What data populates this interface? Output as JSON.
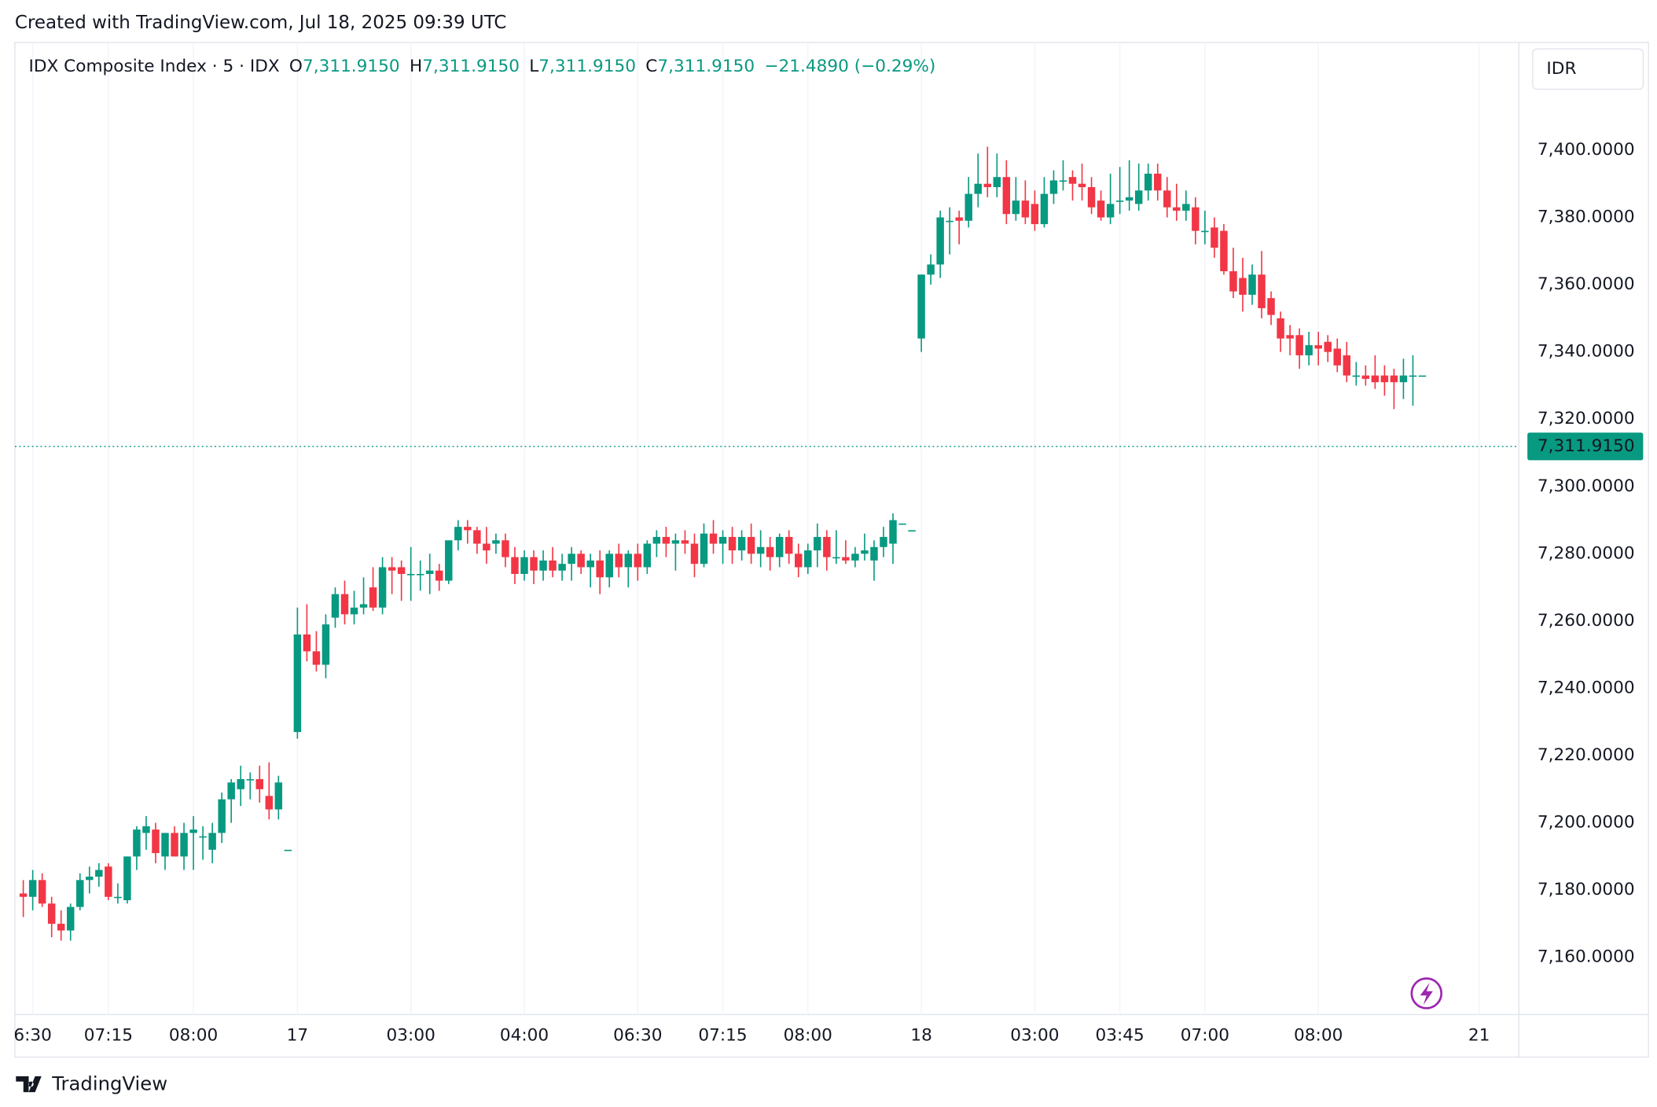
{
  "header": {
    "credit": "Created with TradingView.com, Jul 18, 2025 09:39 UTC",
    "symbol": "IDX Composite Index · 5 · IDX",
    "o_label": "O",
    "open": "7,311.9150",
    "h_label": "H",
    "high": "7,311.9150",
    "l_label": "L",
    "low": "7,311.9150",
    "c_label": "C",
    "close": "7,311.9150",
    "change": "−21.4890 (−0.29%)",
    "currency": "IDR",
    "logo": "TradingView"
  },
  "chart_data": {
    "type": "candlestick",
    "up_color": "#089981",
    "down_color": "#f23645",
    "grid": true,
    "ylim": [
      7143,
      7432
    ],
    "yticks": [
      {
        "value": 7160,
        "label": "7,160.0000"
      },
      {
        "value": 7180,
        "label": "7,180.0000"
      },
      {
        "value": 7200,
        "label": "7,200.0000"
      },
      {
        "value": 7220,
        "label": "7,220.0000"
      },
      {
        "value": 7240,
        "label": "7,240.0000"
      },
      {
        "value": 7260,
        "label": "7,260.0000"
      },
      {
        "value": 7280,
        "label": "7,280.0000"
      },
      {
        "value": 7300,
        "label": "7,300.0000"
      },
      {
        "value": 7320,
        "label": "7,320.0000"
      },
      {
        "value": 7340,
        "label": "7,340.0000"
      },
      {
        "value": 7360,
        "label": "7,360.0000"
      },
      {
        "value": 7380,
        "label": "7,380.0000"
      },
      {
        "value": 7400,
        "label": "7,400.0000"
      }
    ],
    "xticks": [
      {
        "value": 1,
        "label": "6:30"
      },
      {
        "value": 9,
        "label": "07:15"
      },
      {
        "value": 18,
        "label": "08:00"
      },
      {
        "value": 29,
        "label": "17"
      },
      {
        "value": 41,
        "label": "03:00"
      },
      {
        "value": 53,
        "label": "04:00"
      },
      {
        "value": 65,
        "label": "06:30"
      },
      {
        "value": 74,
        "label": "07:15"
      },
      {
        "value": 83,
        "label": "08:00"
      },
      {
        "value": 95,
        "label": "18"
      },
      {
        "value": 107,
        "label": "03:00"
      },
      {
        "value": 116,
        "label": "03:45"
      },
      {
        "value": 125,
        "label": "07:00"
      },
      {
        "value": 137,
        "label": "08:00"
      },
      {
        "value": 154,
        "label": "21"
      }
    ],
    "last_price": {
      "value": 7311.915,
      "label": "7,311.9150"
    },
    "candles": [
      {
        "open": 7179,
        "high": 7183,
        "low": 7172,
        "close": 7178
      },
      {
        "open": 7178,
        "high": 7186,
        "low": 7174,
        "close": 7183
      },
      {
        "open": 7183,
        "high": 7185,
        "low": 7175,
        "close": 7176
      },
      {
        "open": 7176,
        "high": 7178,
        "low": 7166,
        "close": 7170
      },
      {
        "open": 7170,
        "high": 7174,
        "low": 7165,
        "close": 7168
      },
      {
        "open": 7168,
        "high": 7176,
        "low": 7165,
        "close": 7175
      },
      {
        "open": 7175,
        "high": 7185,
        "low": 7174,
        "close": 7183
      },
      {
        "open": 7183,
        "high": 7187,
        "low": 7179,
        "close": 7184
      },
      {
        "open": 7184,
        "high": 7188,
        "low": 7181,
        "close": 7186
      },
      {
        "open": 7187,
        "high": 7188,
        "low": 7177,
        "close": 7178
      },
      {
        "open": 7178,
        "high": 7182,
        "low": 7176,
        "close": 7178
      },
      {
        "open": 7177,
        "high": 7190,
        "low": 7176,
        "close": 7190
      },
      {
        "open": 7190,
        "high": 7199,
        "low": 7186,
        "close": 7198
      },
      {
        "open": 7197,
        "high": 7202,
        "low": 7192,
        "close": 7199
      },
      {
        "open": 7198,
        "high": 7200,
        "low": 7188,
        "close": 7191
      },
      {
        "open": 7190,
        "high": 7197,
        "low": 7186,
        "close": 7197
      },
      {
        "open": 7197,
        "high": 7199,
        "low": 7190,
        "close": 7190
      },
      {
        "open": 7190,
        "high": 7200,
        "low": 7186,
        "close": 7197
      },
      {
        "open": 7197,
        "high": 7202,
        "low": 7186,
        "close": 7198
      },
      {
        "open": 7196,
        "high": 7199,
        "low": 7189,
        "close": 7196
      },
      {
        "open": 7192,
        "high": 7200,
        "low": 7188,
        "close": 7197
      },
      {
        "open": 7197,
        "high": 7209,
        "low": 7194,
        "close": 7207
      },
      {
        "open": 7207,
        "high": 7213,
        "low": 7200,
        "close": 7212
      },
      {
        "open": 7210,
        "high": 7217,
        "low": 7205,
        "close": 7213
      },
      {
        "open": 7213,
        "high": 7215,
        "low": 7207,
        "close": 7213
      },
      {
        "open": 7213,
        "high": 7217,
        "low": 7206,
        "close": 7210
      },
      {
        "open": 7208,
        "high": 7218,
        "low": 7201,
        "close": 7204
      },
      {
        "open": 7204,
        "high": 7214,
        "low": 7201,
        "close": 7212
      },
      {
        "open": 7192,
        "high": 7192,
        "low": 7192,
        "close": 7192
      },
      {
        "open": 7227,
        "high": 7264,
        "low": 7225,
        "close": 7256
      },
      {
        "open": 7256,
        "high": 7265,
        "low": 7248,
        "close": 7251
      },
      {
        "open": 7251,
        "high": 7257,
        "low": 7245,
        "close": 7247
      },
      {
        "open": 7247,
        "high": 7262,
        "low": 7243,
        "close": 7259
      },
      {
        "open": 7261,
        "high": 7270,
        "low": 7258,
        "close": 7268
      },
      {
        "open": 7268,
        "high": 7272,
        "low": 7259,
        "close": 7262
      },
      {
        "open": 7262,
        "high": 7269,
        "low": 7259,
        "close": 7264
      },
      {
        "open": 7264,
        "high": 7273,
        "low": 7262,
        "close": 7265
      },
      {
        "open": 7270,
        "high": 7276,
        "low": 7263,
        "close": 7264
      },
      {
        "open": 7264,
        "high": 7279,
        "low": 7262,
        "close": 7276
      },
      {
        "open": 7276,
        "high": 7279,
        "low": 7268,
        "close": 7275
      },
      {
        "open": 7276,
        "high": 7278,
        "low": 7266,
        "close": 7274
      },
      {
        "open": 7274,
        "high": 7282,
        "low": 7266,
        "close": 7274
      },
      {
        "open": 7274,
        "high": 7278,
        "low": 7269,
        "close": 7274
      },
      {
        "open": 7274,
        "high": 7280,
        "low": 7268,
        "close": 7275
      },
      {
        "open": 7275,
        "high": 7277,
        "low": 7269,
        "close": 7272
      },
      {
        "open": 7272,
        "high": 7282,
        "low": 7271,
        "close": 7284
      },
      {
        "open": 7284,
        "high": 7290,
        "low": 7281,
        "close": 7288
      },
      {
        "open": 7288,
        "high": 7290,
        "low": 7283,
        "close": 7287
      },
      {
        "open": 7287,
        "high": 7288,
        "low": 7280,
        "close": 7283
      },
      {
        "open": 7283,
        "high": 7288,
        "low": 7277,
        "close": 7281
      },
      {
        "open": 7283,
        "high": 7286,
        "low": 7280,
        "close": 7284
      },
      {
        "open": 7284,
        "high": 7286,
        "low": 7276,
        "close": 7279
      },
      {
        "open": 7279,
        "high": 7282,
        "low": 7271,
        "close": 7274
      },
      {
        "open": 7274,
        "high": 7281,
        "low": 7272,
        "close": 7279
      },
      {
        "open": 7279,
        "high": 7281,
        "low": 7271,
        "close": 7275
      },
      {
        "open": 7275,
        "high": 7281,
        "low": 7272,
        "close": 7278
      },
      {
        "open": 7278,
        "high": 7282,
        "low": 7273,
        "close": 7275
      },
      {
        "open": 7275,
        "high": 7280,
        "low": 7272,
        "close": 7277
      },
      {
        "open": 7277,
        "high": 7282,
        "low": 7272,
        "close": 7280
      },
      {
        "open": 7280,
        "high": 7281,
        "low": 7274,
        "close": 7276
      },
      {
        "open": 7276,
        "high": 7280,
        "low": 7270,
        "close": 7278
      },
      {
        "open": 7278,
        "high": 7281,
        "low": 7268,
        "close": 7273
      },
      {
        "open": 7273,
        "high": 7281,
        "low": 7270,
        "close": 7280
      },
      {
        "open": 7280,
        "high": 7283,
        "low": 7273,
        "close": 7276
      },
      {
        "open": 7276,
        "high": 7281,
        "low": 7270,
        "close": 7280
      },
      {
        "open": 7280,
        "high": 7283,
        "low": 7272,
        "close": 7276
      },
      {
        "open": 7276,
        "high": 7284,
        "low": 7274,
        "close": 7283
      },
      {
        "open": 7283,
        "high": 7287,
        "low": 7279,
        "close": 7285
      },
      {
        "open": 7285,
        "high": 7288,
        "low": 7279,
        "close": 7283
      },
      {
        "open": 7283,
        "high": 7286,
        "low": 7275,
        "close": 7284
      },
      {
        "open": 7284,
        "high": 7287,
        "low": 7280,
        "close": 7283
      },
      {
        "open": 7283,
        "high": 7286,
        "low": 7273,
        "close": 7277
      },
      {
        "open": 7277,
        "high": 7289,
        "low": 7276,
        "close": 7286
      },
      {
        "open": 7286,
        "high": 7290,
        "low": 7280,
        "close": 7283
      },
      {
        "open": 7283,
        "high": 7287,
        "low": 7277,
        "close": 7285
      },
      {
        "open": 7285,
        "high": 7288,
        "low": 7277,
        "close": 7281
      },
      {
        "open": 7281,
        "high": 7287,
        "low": 7278,
        "close": 7285
      },
      {
        "open": 7285,
        "high": 7289,
        "low": 7277,
        "close": 7280
      },
      {
        "open": 7280,
        "high": 7287,
        "low": 7276,
        "close": 7282
      },
      {
        "open": 7282,
        "high": 7285,
        "low": 7275,
        "close": 7279
      },
      {
        "open": 7279,
        "high": 7286,
        "low": 7276,
        "close": 7285
      },
      {
        "open": 7285,
        "high": 7287,
        "low": 7277,
        "close": 7280
      },
      {
        "open": 7280,
        "high": 7283,
        "low": 7273,
        "close": 7276
      },
      {
        "open": 7276,
        "high": 7283,
        "low": 7274,
        "close": 7281
      },
      {
        "open": 7281,
        "high": 7289,
        "low": 7276,
        "close": 7285
      },
      {
        "open": 7285,
        "high": 7287,
        "low": 7275,
        "close": 7279
      },
      {
        "open": 7279,
        "high": 7287,
        "low": 7277,
        "close": 7279
      },
      {
        "open": 7279,
        "high": 7284,
        "low": 7277,
        "close": 7278
      },
      {
        "open": 7278,
        "high": 7282,
        "low": 7276,
        "close": 7280
      },
      {
        "open": 7280,
        "high": 7286,
        "low": 7278,
        "close": 7281
      },
      {
        "open": 7278,
        "high": 7284,
        "low": 7272,
        "close": 7282
      },
      {
        "open": 7282,
        "high": 7288,
        "low": 7279,
        "close": 7285
      },
      {
        "open": 7283,
        "high": 7292,
        "low": 7277,
        "close": 7290
      },
      {
        "open": 7289,
        "high": 7289,
        "low": 7289,
        "close": 7289
      },
      {
        "open": 7287,
        "high": 7287,
        "low": 7287,
        "close": 7287
      },
      {
        "open": 7344,
        "high": 7363,
        "low": 7340,
        "close": 7363
      },
      {
        "open": 7363,
        "high": 7369,
        "low": 7360,
        "close": 7366
      },
      {
        "open": 7366,
        "high": 7382,
        "low": 7362,
        "close": 7380
      },
      {
        "open": 7379,
        "high": 7383,
        "low": 7369,
        "close": 7379
      },
      {
        "open": 7380,
        "high": 7382,
        "low": 7372,
        "close": 7379
      },
      {
        "open": 7379,
        "high": 7392,
        "low": 7377,
        "close": 7387
      },
      {
        "open": 7387,
        "high": 7399,
        "low": 7383,
        "close": 7390
      },
      {
        "open": 7390,
        "high": 7401,
        "low": 7386,
        "close": 7389
      },
      {
        "open": 7389,
        "high": 7399,
        "low": 7386,
        "close": 7392
      },
      {
        "open": 7392,
        "high": 7397,
        "low": 7378,
        "close": 7381
      },
      {
        "open": 7381,
        "high": 7392,
        "low": 7379,
        "close": 7385
      },
      {
        "open": 7385,
        "high": 7391,
        "low": 7378,
        "close": 7380
      },
      {
        "open": 7384,
        "high": 7388,
        "low": 7376,
        "close": 7378
      },
      {
        "open": 7378,
        "high": 7392,
        "low": 7377,
        "close": 7387
      },
      {
        "open": 7387,
        "high": 7394,
        "low": 7384,
        "close": 7391
      },
      {
        "open": 7391,
        "high": 7397,
        "low": 7388,
        "close": 7391
      },
      {
        "open": 7392,
        "high": 7394,
        "low": 7385,
        "close": 7390
      },
      {
        "open": 7390,
        "high": 7396,
        "low": 7385,
        "close": 7389
      },
      {
        "open": 7389,
        "high": 7392,
        "low": 7381,
        "close": 7383
      },
      {
        "open": 7385,
        "high": 7388,
        "low": 7379,
        "close": 7380
      },
      {
        "open": 7380,
        "high": 7393,
        "low": 7378,
        "close": 7384
      },
      {
        "open": 7385,
        "high": 7395,
        "low": 7381,
        "close": 7385
      },
      {
        "open": 7385,
        "high": 7397,
        "low": 7382,
        "close": 7386
      },
      {
        "open": 7384,
        "high": 7396,
        "low": 7382,
        "close": 7388
      },
      {
        "open": 7388,
        "high": 7396,
        "low": 7385,
        "close": 7393
      },
      {
        "open": 7393,
        "high": 7396,
        "low": 7385,
        "close": 7388
      },
      {
        "open": 7388,
        "high": 7392,
        "low": 7380,
        "close": 7383
      },
      {
        "open": 7383,
        "high": 7390,
        "low": 7379,
        "close": 7382
      },
      {
        "open": 7382,
        "high": 7388,
        "low": 7379,
        "close": 7384
      },
      {
        "open": 7383,
        "high": 7386,
        "low": 7372,
        "close": 7376
      },
      {
        "open": 7376,
        "high": 7382,
        "low": 7372,
        "close": 7376
      },
      {
        "open": 7377,
        "high": 7380,
        "low": 7368,
        "close": 7371
      },
      {
        "open": 7376,
        "high": 7378,
        "low": 7363,
        "close": 7364
      },
      {
        "open": 7364,
        "high": 7371,
        "low": 7356,
        "close": 7358
      },
      {
        "open": 7362,
        "high": 7368,
        "low": 7352,
        "close": 7357
      },
      {
        "open": 7357,
        "high": 7366,
        "low": 7354,
        "close": 7363
      },
      {
        "open": 7363,
        "high": 7370,
        "low": 7350,
        "close": 7353
      },
      {
        "open": 7356,
        "high": 7358,
        "low": 7348,
        "close": 7351
      },
      {
        "open": 7350,
        "high": 7352,
        "low": 7340,
        "close": 7344
      },
      {
        "open": 7345,
        "high": 7348,
        "low": 7339,
        "close": 7344
      },
      {
        "open": 7345,
        "high": 7347,
        "low": 7335,
        "close": 7339
      },
      {
        "open": 7339,
        "high": 7346,
        "low": 7336,
        "close": 7342
      },
      {
        "open": 7342,
        "high": 7346,
        "low": 7336,
        "close": 7341
      },
      {
        "open": 7343,
        "high": 7345,
        "low": 7337,
        "close": 7340
      },
      {
        "open": 7341,
        "high": 7344,
        "low": 7334,
        "close": 7336
      },
      {
        "open": 7339,
        "high": 7343,
        "low": 7331,
        "close": 7333
      },
      {
        "open": 7333,
        "high": 7337,
        "low": 7330,
        "close": 7333
      },
      {
        "open": 7333,
        "high": 7336,
        "low": 7330,
        "close": 7332
      },
      {
        "open": 7333,
        "high": 7339,
        "low": 7329,
        "close": 7331
      },
      {
        "open": 7333,
        "high": 7336,
        "low": 7327,
        "close": 7331
      },
      {
        "open": 7333,
        "high": 7335,
        "low": 7323,
        "close": 7331
      },
      {
        "open": 7331,
        "high": 7338,
        "low": 7326,
        "close": 7333
      },
      {
        "open": 7333,
        "high": 7339,
        "low": 7324,
        "close": 7333
      },
      {
        "open": 7333,
        "high": 7333,
        "low": 7333,
        "close": 7333
      }
    ]
  }
}
